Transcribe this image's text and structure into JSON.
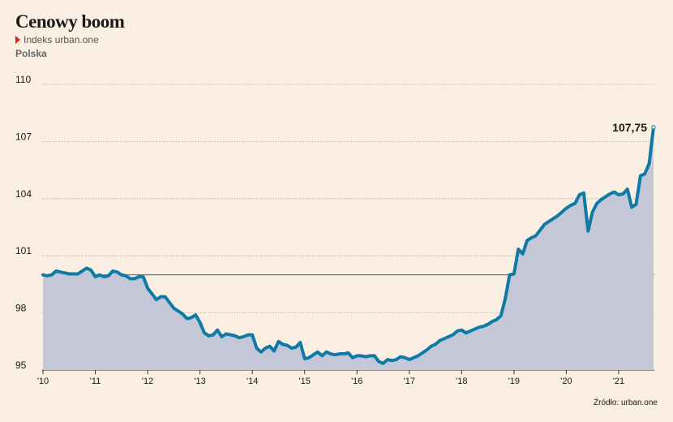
{
  "header": {
    "title": "Cenowy boom",
    "legend_label": "Indeks urban.one",
    "subtitle": "Polska"
  },
  "source": "Źródło: urban.one",
  "colors": {
    "line": "#0e7aa6",
    "area": "#c3c7d8",
    "background": "#fbeee2",
    "legend_marker": "#e2231a"
  },
  "chart_data": {
    "type": "area",
    "title": "Cenowy boom",
    "ylim": [
      95,
      110
    ],
    "yticks": [
      95,
      98,
      101,
      104,
      107,
      110
    ],
    "ytick_labels": [
      "95",
      "98",
      "101",
      "104",
      "107",
      "110"
    ],
    "xticks": [
      "'10",
      "'11",
      "'12",
      "'13",
      "'14",
      "'15",
      "'16",
      "'17",
      "'18",
      "'19",
      "'20",
      "'21"
    ],
    "reference_line": 100,
    "end_label": "107,75",
    "series": [
      {
        "name": "Indeks urban.one",
        "start": "2010-01",
        "frequency": "monthly",
        "values": [
          100.0,
          99.95,
          100.0,
          100.2,
          100.15,
          100.1,
          100.05,
          100.05,
          100.05,
          100.2,
          100.35,
          100.25,
          99.9,
          100.0,
          99.9,
          99.95,
          100.2,
          100.15,
          100.0,
          99.95,
          99.8,
          99.8,
          99.9,
          99.9,
          99.3,
          99.0,
          98.7,
          98.85,
          98.85,
          98.55,
          98.25,
          98.1,
          97.95,
          97.7,
          97.75,
          97.9,
          97.5,
          96.95,
          96.8,
          96.85,
          97.1,
          96.75,
          96.9,
          96.85,
          96.8,
          96.7,
          96.75,
          96.85,
          96.85,
          96.15,
          95.95,
          96.15,
          96.25,
          96.0,
          96.5,
          96.35,
          96.3,
          96.15,
          96.2,
          96.45,
          95.6,
          95.65,
          95.8,
          95.95,
          95.75,
          95.95,
          95.85,
          95.8,
          95.85,
          95.85,
          95.9,
          95.65,
          95.75,
          95.75,
          95.7,
          95.75,
          95.75,
          95.45,
          95.35,
          95.55,
          95.5,
          95.55,
          95.7,
          95.65,
          95.55,
          95.65,
          95.75,
          95.9,
          96.05,
          96.25,
          96.35,
          96.55,
          96.65,
          96.75,
          96.85,
          97.05,
          97.1,
          96.95,
          97.05,
          97.15,
          97.25,
          97.3,
          97.4,
          97.55,
          97.65,
          97.85,
          98.75,
          100.0,
          100.05,
          101.35,
          101.1,
          101.8,
          101.95,
          102.05,
          102.35,
          102.65,
          102.8,
          102.95,
          103.1,
          103.3,
          103.5,
          103.65,
          103.75,
          104.2,
          104.3,
          102.3,
          103.3,
          103.75,
          103.95,
          104.1,
          104.25,
          104.35,
          104.2,
          104.25,
          104.5,
          103.55,
          103.7,
          105.2,
          105.3,
          105.85,
          107.75
        ]
      }
    ]
  }
}
